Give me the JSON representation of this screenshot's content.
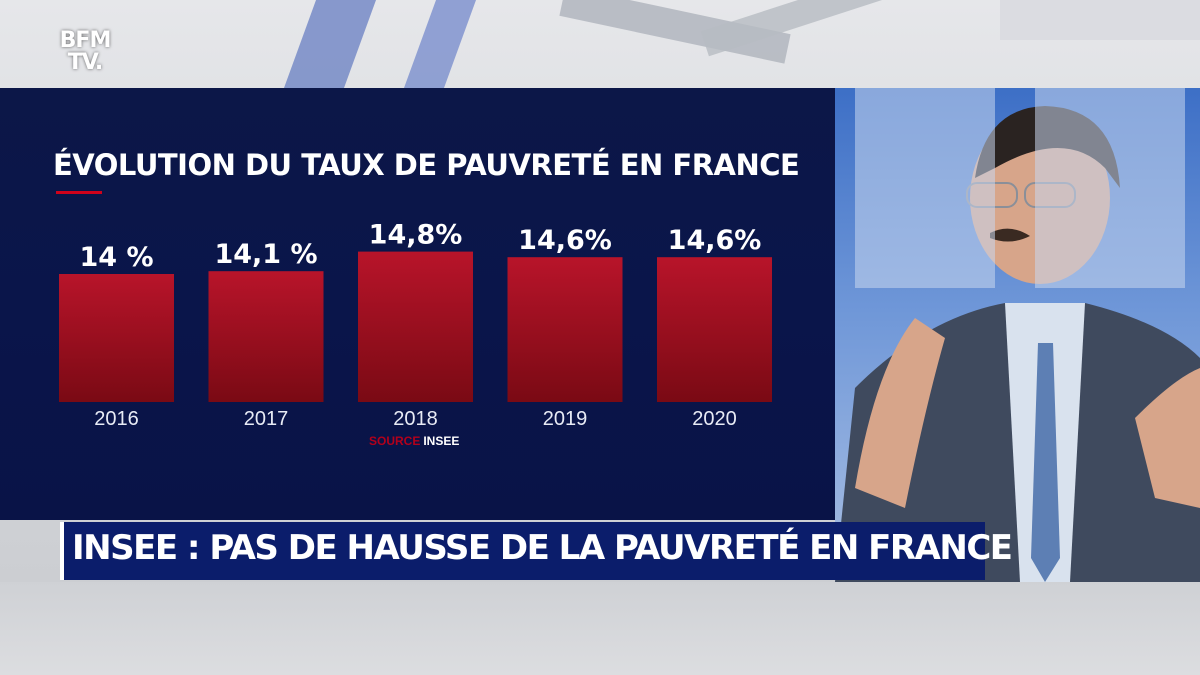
{
  "channel_logo": {
    "line1": "BFM",
    "line2": "TV."
  },
  "chart_data": {
    "type": "bar",
    "title": "ÉVOLUTION DU TAUX DE PAUVRETÉ EN FRANCE",
    "categories": [
      "2016",
      "2017",
      "2018",
      "2019",
      "2020"
    ],
    "values": [
      14,
      14.1,
      14.8,
      14.6,
      14.6
    ],
    "data_labels": [
      "14 %",
      "14,1 %",
      "14,8%",
      "14,6%",
      "14,6%"
    ],
    "unit": "%",
    "grid": false,
    "legend": "none",
    "colors": {
      "bar_top": "#b8142a",
      "bar_bottom": "#7a0a14",
      "label": "#ffffff"
    }
  },
  "source": {
    "label": "SOURCE",
    "value": "INSEE"
  },
  "headline": {
    "text": "INSEE : PAS DE HAUSSE DE LA PAUVRETÉ EN FRANCE"
  }
}
